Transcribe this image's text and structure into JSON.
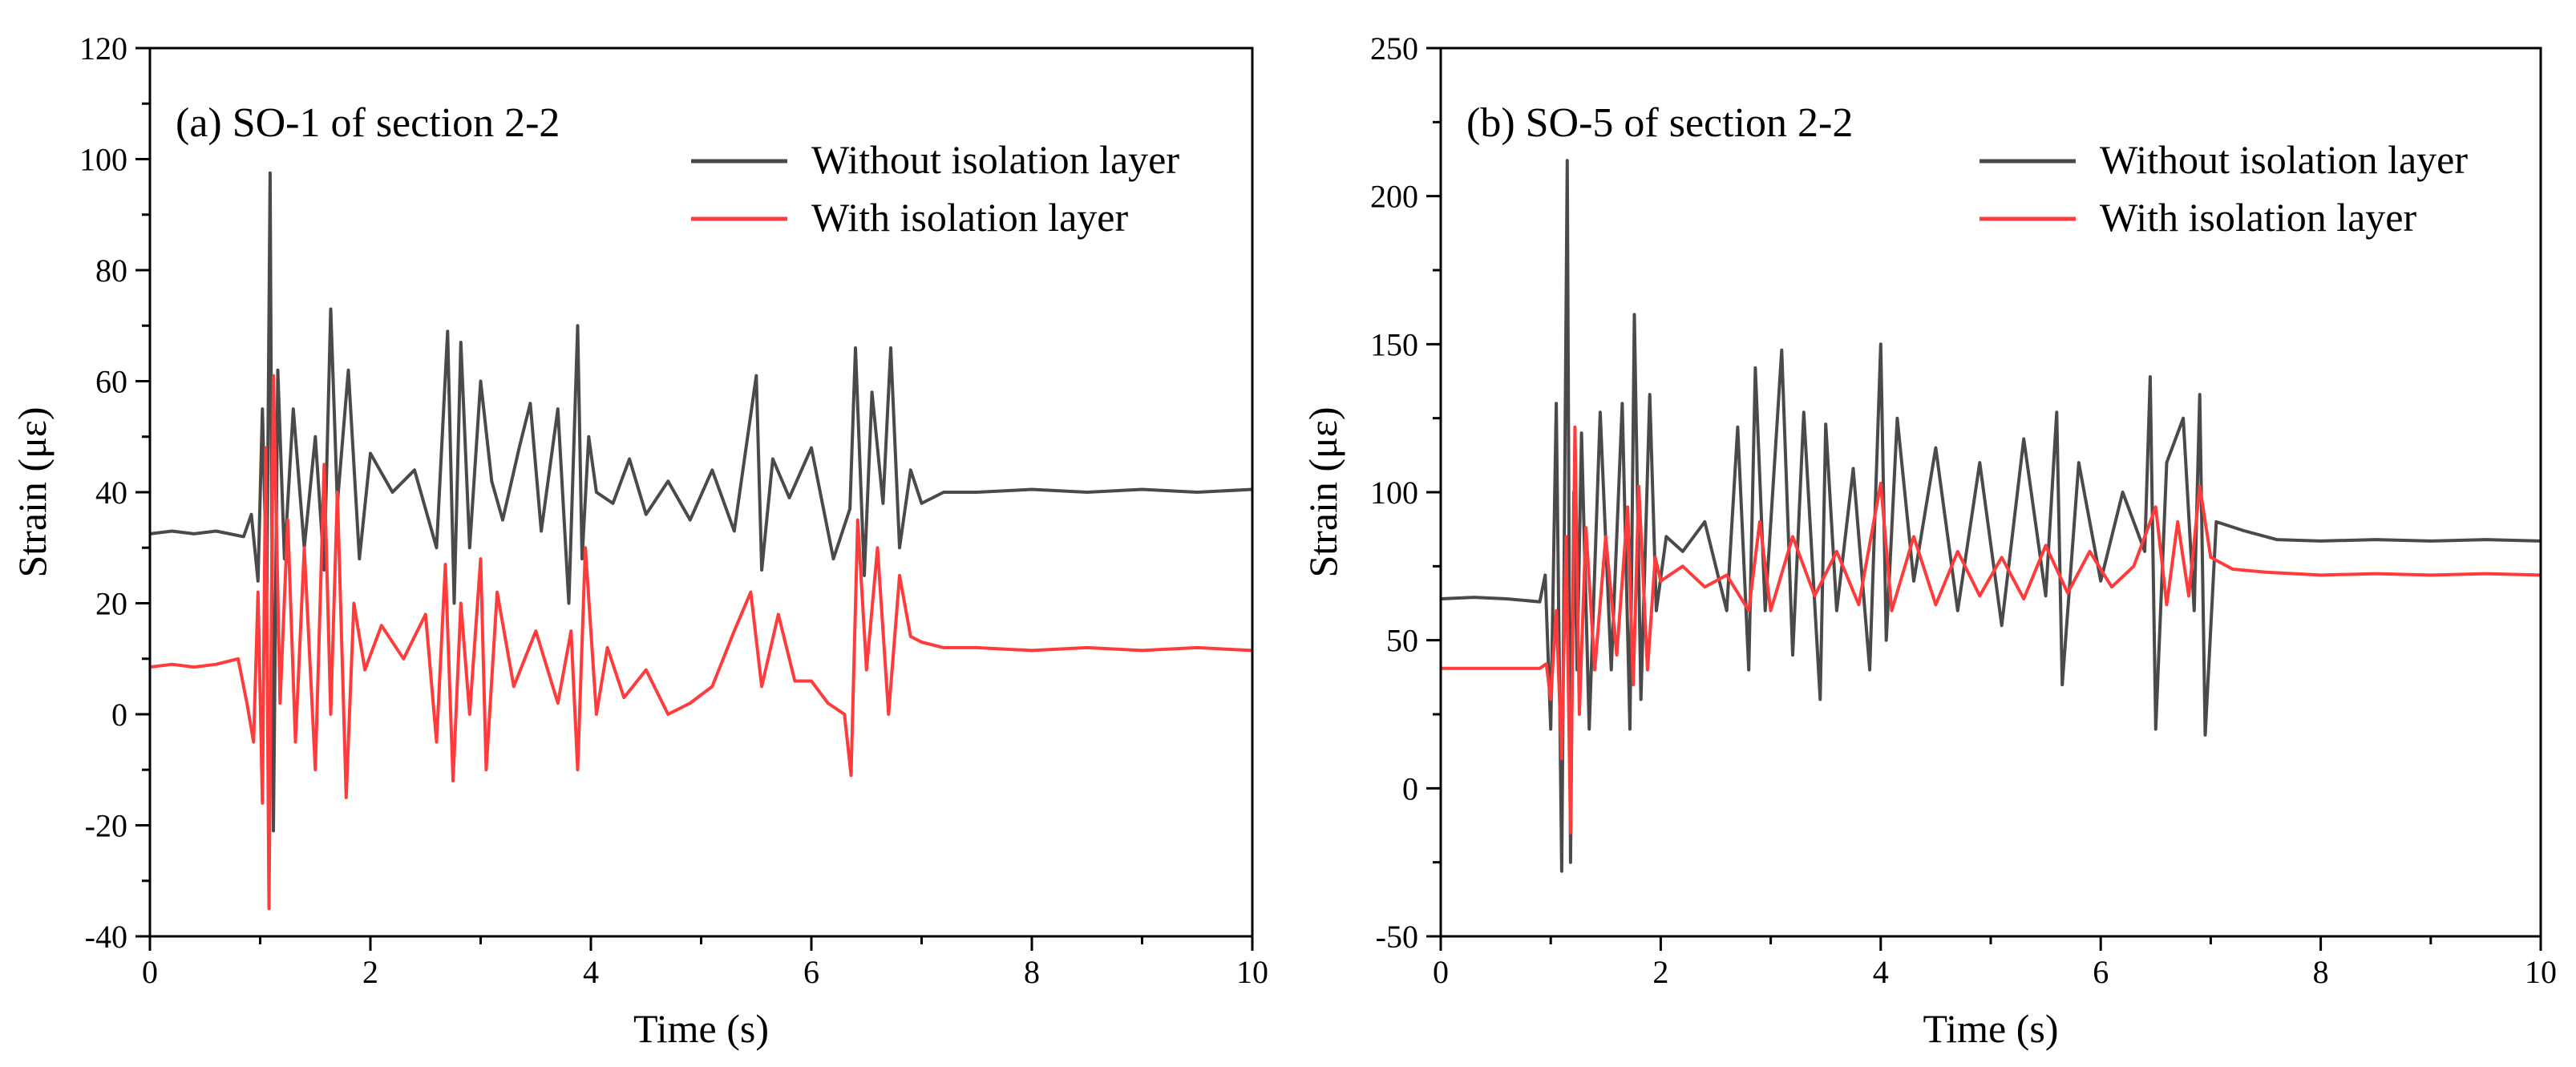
{
  "figure": {
    "background": "#ffffff",
    "colors": {
      "without": "#4a4a4a",
      "with": "#ff3b3b",
      "axis": "#000000"
    }
  },
  "chart_data": [
    {
      "type": "line",
      "title": "(a) SO-1 of section 2-2",
      "xlabel": "Time (s)",
      "ylabel": "Strain (με)",
      "xlim": [
        0,
        10
      ],
      "ylim": [
        -40,
        120
      ],
      "xticks": [
        0,
        2,
        4,
        6,
        8,
        10
      ],
      "yticks": [
        -40,
        -20,
        0,
        20,
        40,
        60,
        80,
        100,
        120
      ],
      "legend_position": "top-right",
      "grid": false,
      "series": [
        {
          "name": "Without isolation layer",
          "color": "#4a4a4a",
          "x": [
            0,
            0.2,
            0.4,
            0.6,
            0.85,
            0.92,
            0.98,
            1.02,
            1.06,
            1.09,
            1.12,
            1.16,
            1.22,
            1.3,
            1.4,
            1.5,
            1.58,
            1.64,
            1.7,
            1.8,
            1.9,
            2.0,
            2.2,
            2.4,
            2.6,
            2.7,
            2.76,
            2.82,
            2.9,
            3.0,
            3.1,
            3.2,
            3.35,
            3.45,
            3.55,
            3.7,
            3.8,
            3.88,
            3.92,
            3.98,
            4.05,
            4.2,
            4.35,
            4.5,
            4.7,
            4.9,
            5.1,
            5.3,
            5.5,
            5.55,
            5.65,
            5.8,
            6.0,
            6.2,
            6.35,
            6.4,
            6.48,
            6.55,
            6.65,
            6.72,
            6.8,
            6.9,
            7.0,
            7.2,
            7.5,
            8.0,
            8.5,
            9.0,
            9.5,
            10
          ],
          "y": [
            32.5,
            33,
            32.5,
            33,
            32,
            36,
            24,
            55,
            22,
            97.5,
            -21,
            62,
            28,
            55,
            30,
            50,
            26,
            73,
            38,
            62,
            28,
            47,
            40,
            44,
            30,
            69,
            20,
            67,
            30,
            60,
            42,
            35,
            48,
            56,
            33,
            55,
            20,
            70,
            28,
            50,
            40,
            38,
            46,
            36,
            42,
            35,
            44,
            33,
            61,
            26,
            46,
            39,
            48,
            28,
            37,
            66,
            25,
            58,
            38,
            66,
            30,
            44,
            38,
            40,
            40,
            40.5,
            40,
            40.5,
            40,
            40.5
          ]
        },
        {
          "name": "With isolation layer",
          "color": "#ff3b3b",
          "x": [
            0,
            0.2,
            0.4,
            0.6,
            0.8,
            0.88,
            0.94,
            0.98,
            1.02,
            1.05,
            1.08,
            1.12,
            1.18,
            1.25,
            1.32,
            1.4,
            1.5,
            1.58,
            1.64,
            1.7,
            1.78,
            1.85,
            1.95,
            2.1,
            2.3,
            2.5,
            2.6,
            2.68,
            2.75,
            2.82,
            2.9,
            3.0,
            3.05,
            3.15,
            3.3,
            3.5,
            3.7,
            3.82,
            3.88,
            3.95,
            4.05,
            4.15,
            4.3,
            4.5,
            4.7,
            4.9,
            5.1,
            5.3,
            5.45,
            5.55,
            5.7,
            5.85,
            6.0,
            6.15,
            6.3,
            6.36,
            6.42,
            6.5,
            6.6,
            6.7,
            6.8,
            6.9,
            7.0,
            7.2,
            7.5,
            8.0,
            8.5,
            9.0,
            9.5,
            10
          ],
          "y": [
            8.5,
            9,
            8.5,
            9,
            10,
            2,
            -5,
            22,
            -16,
            48,
            -35,
            61,
            2,
            35,
            -5,
            30,
            -10,
            45,
            0,
            40,
            -15,
            20,
            8,
            16,
            10,
            18,
            -5,
            27,
            -12,
            20,
            0,
            28,
            -10,
            22,
            5,
            15,
            2,
            15,
            -10,
            30,
            0,
            12,
            3,
            8,
            0,
            2,
            5,
            15,
            22,
            5,
            18,
            6,
            6,
            2,
            0,
            -11,
            35,
            8,
            30,
            0,
            25,
            14,
            13,
            12,
            12,
            11.5,
            12,
            11.5,
            12,
            11.5
          ]
        }
      ]
    },
    {
      "type": "line",
      "title": "(b) SO-5 of section 2-2",
      "xlabel": "Time (s)",
      "ylabel": "Strain (με)",
      "xlim": [
        0,
        10
      ],
      "ylim": [
        -50,
        250
      ],
      "xticks": [
        0,
        2,
        4,
        6,
        8,
        10
      ],
      "yticks": [
        -50,
        0,
        50,
        100,
        150,
        200,
        250
      ],
      "legend_position": "top-right",
      "grid": false,
      "series": [
        {
          "name": "Without isolation layer",
          "color": "#4a4a4a",
          "x": [
            0,
            0.3,
            0.6,
            0.9,
            0.95,
            1.0,
            1.05,
            1.1,
            1.15,
            1.18,
            1.21,
            1.24,
            1.28,
            1.35,
            1.45,
            1.55,
            1.65,
            1.72,
            1.76,
            1.82,
            1.9,
            1.96,
            2.05,
            2.2,
            2.4,
            2.6,
            2.7,
            2.8,
            2.86,
            2.95,
            3.1,
            3.2,
            3.3,
            3.45,
            3.5,
            3.6,
            3.75,
            3.9,
            4.0,
            4.05,
            4.15,
            4.3,
            4.5,
            4.7,
            4.9,
            5.1,
            5.3,
            5.5,
            5.6,
            5.65,
            5.8,
            6.0,
            6.2,
            6.4,
            6.45,
            6.5,
            6.6,
            6.75,
            6.85,
            6.9,
            6.95,
            7.05,
            7.3,
            7.6,
            8.0,
            8.5,
            9.0,
            9.5,
            10
          ],
          "y": [
            64,
            64.5,
            64,
            63,
            72,
            20,
            130,
            -28,
            212,
            -25,
            100,
            40,
            120,
            20,
            127,
            40,
            130,
            20,
            160,
            30,
            133,
            60,
            85,
            80,
            90,
            60,
            122,
            40,
            142,
            60,
            148,
            45,
            127,
            30,
            123,
            60,
            108,
            40,
            150,
            50,
            125,
            70,
            115,
            60,
            110,
            55,
            118,
            65,
            127,
            35,
            110,
            70,
            100,
            80,
            139,
            20,
            110,
            125,
            60,
            133,
            18,
            90,
            87,
            84,
            83.5,
            84,
            83.5,
            84,
            83.5
          ]
        },
        {
          "name": "With isolation layer",
          "color": "#ff3b3b",
          "x": [
            0,
            0.3,
            0.6,
            0.9,
            0.96,
            1.0,
            1.05,
            1.1,
            1.14,
            1.18,
            1.22,
            1.26,
            1.32,
            1.4,
            1.5,
            1.6,
            1.7,
            1.75,
            1.8,
            1.88,
            1.95,
            2.0,
            2.2,
            2.4,
            2.6,
            2.8,
            2.9,
            3.0,
            3.2,
            3.4,
            3.6,
            3.8,
            4.0,
            4.1,
            4.3,
            4.5,
            4.7,
            4.9,
            5.1,
            5.3,
            5.5,
            5.7,
            5.9,
            6.1,
            6.3,
            6.5,
            6.6,
            6.7,
            6.8,
            6.9,
            7.0,
            7.2,
            7.5,
            8.0,
            8.5,
            9.0,
            9.5,
            10
          ],
          "y": [
            40.5,
            40.5,
            40.5,
            40.5,
            42,
            30,
            60,
            10,
            85,
            -15,
            122,
            25,
            88,
            40,
            85,
            45,
            95,
            35,
            102,
            40,
            78,
            70,
            75,
            68,
            72,
            60,
            90,
            60,
            85,
            65,
            80,
            62,
            103,
            60,
            85,
            62,
            80,
            65,
            78,
            64,
            82,
            66,
            80,
            68,
            75,
            95,
            62,
            90,
            65,
            102,
            78,
            74,
            73,
            72,
            72.5,
            72,
            72.5,
            72
          ]
        }
      ]
    }
  ]
}
